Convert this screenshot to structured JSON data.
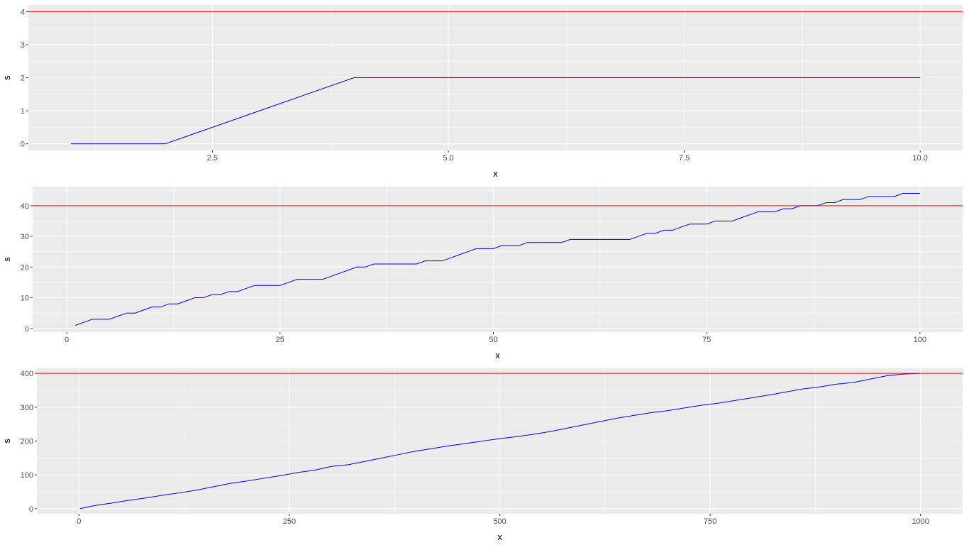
{
  "chart_data": [
    {
      "type": "line",
      "xlabel": "x",
      "ylabel": "s",
      "xlim": [
        0.55,
        10.45
      ],
      "ylim": [
        -0.2,
        4.2
      ],
      "x_ticks": [
        2.5,
        5.0,
        7.5,
        10.0
      ],
      "x_tick_labels": [
        "2.5",
        "5.0",
        "7.5",
        "10.0"
      ],
      "y_ticks": [
        0,
        1,
        2,
        3,
        4
      ],
      "y_tick_labels": [
        "0",
        "1",
        "2",
        "3",
        "4"
      ],
      "grid": true,
      "hline": {
        "y": 4,
        "color": "#ff0000"
      },
      "series": [
        {
          "color": "#0000ff",
          "x": [
            1,
            2,
            4,
            10
          ],
          "y": [
            0,
            0,
            2,
            2
          ]
        }
      ]
    },
    {
      "type": "line",
      "xlabel": "x",
      "ylabel": "s",
      "xlim": [
        -4,
        105
      ],
      "ylim": [
        -1.2,
        46.2
      ],
      "x_ticks": [
        0,
        25,
        50,
        75,
        100
      ],
      "x_tick_labels": [
        "0",
        "25",
        "50",
        "75",
        "100"
      ],
      "y_ticks": [
        0,
        10,
        20,
        30,
        40
      ],
      "y_tick_labels": [
        "0",
        "10",
        "20",
        "30",
        "40"
      ],
      "grid": true,
      "hline": {
        "y": 40,
        "color": "#ff0000"
      },
      "series": [
        {
          "color": "#0000ff",
          "x": [
            1,
            2,
            3,
            4,
            5,
            6,
            7,
            8,
            9,
            10,
            11,
            12,
            13,
            14,
            15,
            16,
            17,
            18,
            19,
            20,
            21,
            22,
            23,
            24,
            25,
            26,
            27,
            28,
            29,
            30,
            31,
            32,
            33,
            34,
            35,
            36,
            37,
            38,
            39,
            40,
            41,
            42,
            43,
            44,
            45,
            46,
            47,
            48,
            49,
            50,
            51,
            52,
            53,
            54,
            55,
            56,
            57,
            58,
            59,
            60,
            61,
            62,
            63,
            64,
            65,
            66,
            67,
            68,
            69,
            70,
            71,
            72,
            73,
            74,
            75,
            76,
            77,
            78,
            79,
            80,
            81,
            82,
            83,
            84,
            85,
            86,
            87,
            88,
            89,
            90,
            91,
            92,
            93,
            94,
            95,
            96,
            97,
            98,
            99,
            100
          ],
          "y": [
            1,
            2,
            3,
            3,
            3,
            4,
            5,
            5,
            6,
            7,
            7,
            8,
            8,
            9,
            10,
            10,
            11,
            11,
            12,
            12,
            13,
            14,
            14,
            14,
            14,
            15,
            16,
            16,
            16,
            16,
            17,
            18,
            19,
            20,
            20,
            21,
            21,
            21,
            21,
            21,
            21,
            22,
            22,
            22,
            23,
            24,
            25,
            26,
            26,
            26,
            27,
            27,
            27,
            28,
            28,
            28,
            28,
            28,
            29,
            29,
            29,
            29,
            29,
            29,
            29,
            29,
            30,
            31,
            31,
            32,
            32,
            33,
            34,
            34,
            34,
            35,
            35,
            35,
            36,
            37,
            38,
            38,
            38,
            39,
            39,
            40,
            40,
            40,
            41,
            41,
            42,
            42,
            42,
            43,
            43,
            43,
            43,
            44,
            44,
            44
          ]
        }
      ]
    },
    {
      "type": "line",
      "xlabel": "x",
      "ylabel": "s",
      "xlim": [
        -50,
        1050
      ],
      "ylim": [
        -15,
        415
      ],
      "x_ticks": [
        0,
        250,
        500,
        750,
        1000
      ],
      "x_tick_labels": [
        "0",
        "250",
        "500",
        "750",
        "1000"
      ],
      "y_ticks": [
        0,
        100,
        200,
        300,
        400
      ],
      "y_tick_labels": [
        "0",
        "100",
        "200",
        "300",
        "400"
      ],
      "grid": true,
      "hline": {
        "y": 400,
        "color": "#ff0000"
      },
      "series": [
        {
          "color": "#0000ff",
          "x": [
            1,
            20,
            40,
            60,
            80,
            100,
            120,
            140,
            160,
            180,
            200,
            220,
            240,
            260,
            280,
            300,
            320,
            340,
            360,
            380,
            400,
            420,
            440,
            460,
            480,
            500,
            520,
            540,
            560,
            580,
            600,
            620,
            640,
            660,
            680,
            700,
            720,
            740,
            760,
            780,
            800,
            820,
            840,
            860,
            880,
            900,
            920,
            940,
            960,
            980,
            1000
          ],
          "y": [
            0,
            10,
            17,
            25,
            32,
            40,
            47,
            55,
            65,
            75,
            82,
            90,
            98,
            107,
            114,
            125,
            130,
            140,
            150,
            160,
            170,
            178,
            186,
            193,
            200,
            207,
            213,
            220,
            228,
            238,
            248,
            258,
            268,
            276,
            284,
            290,
            298,
            306,
            312,
            320,
            328,
            336,
            345,
            354,
            360,
            368,
            373,
            383,
            393,
            398,
            400
          ]
        }
      ]
    }
  ]
}
